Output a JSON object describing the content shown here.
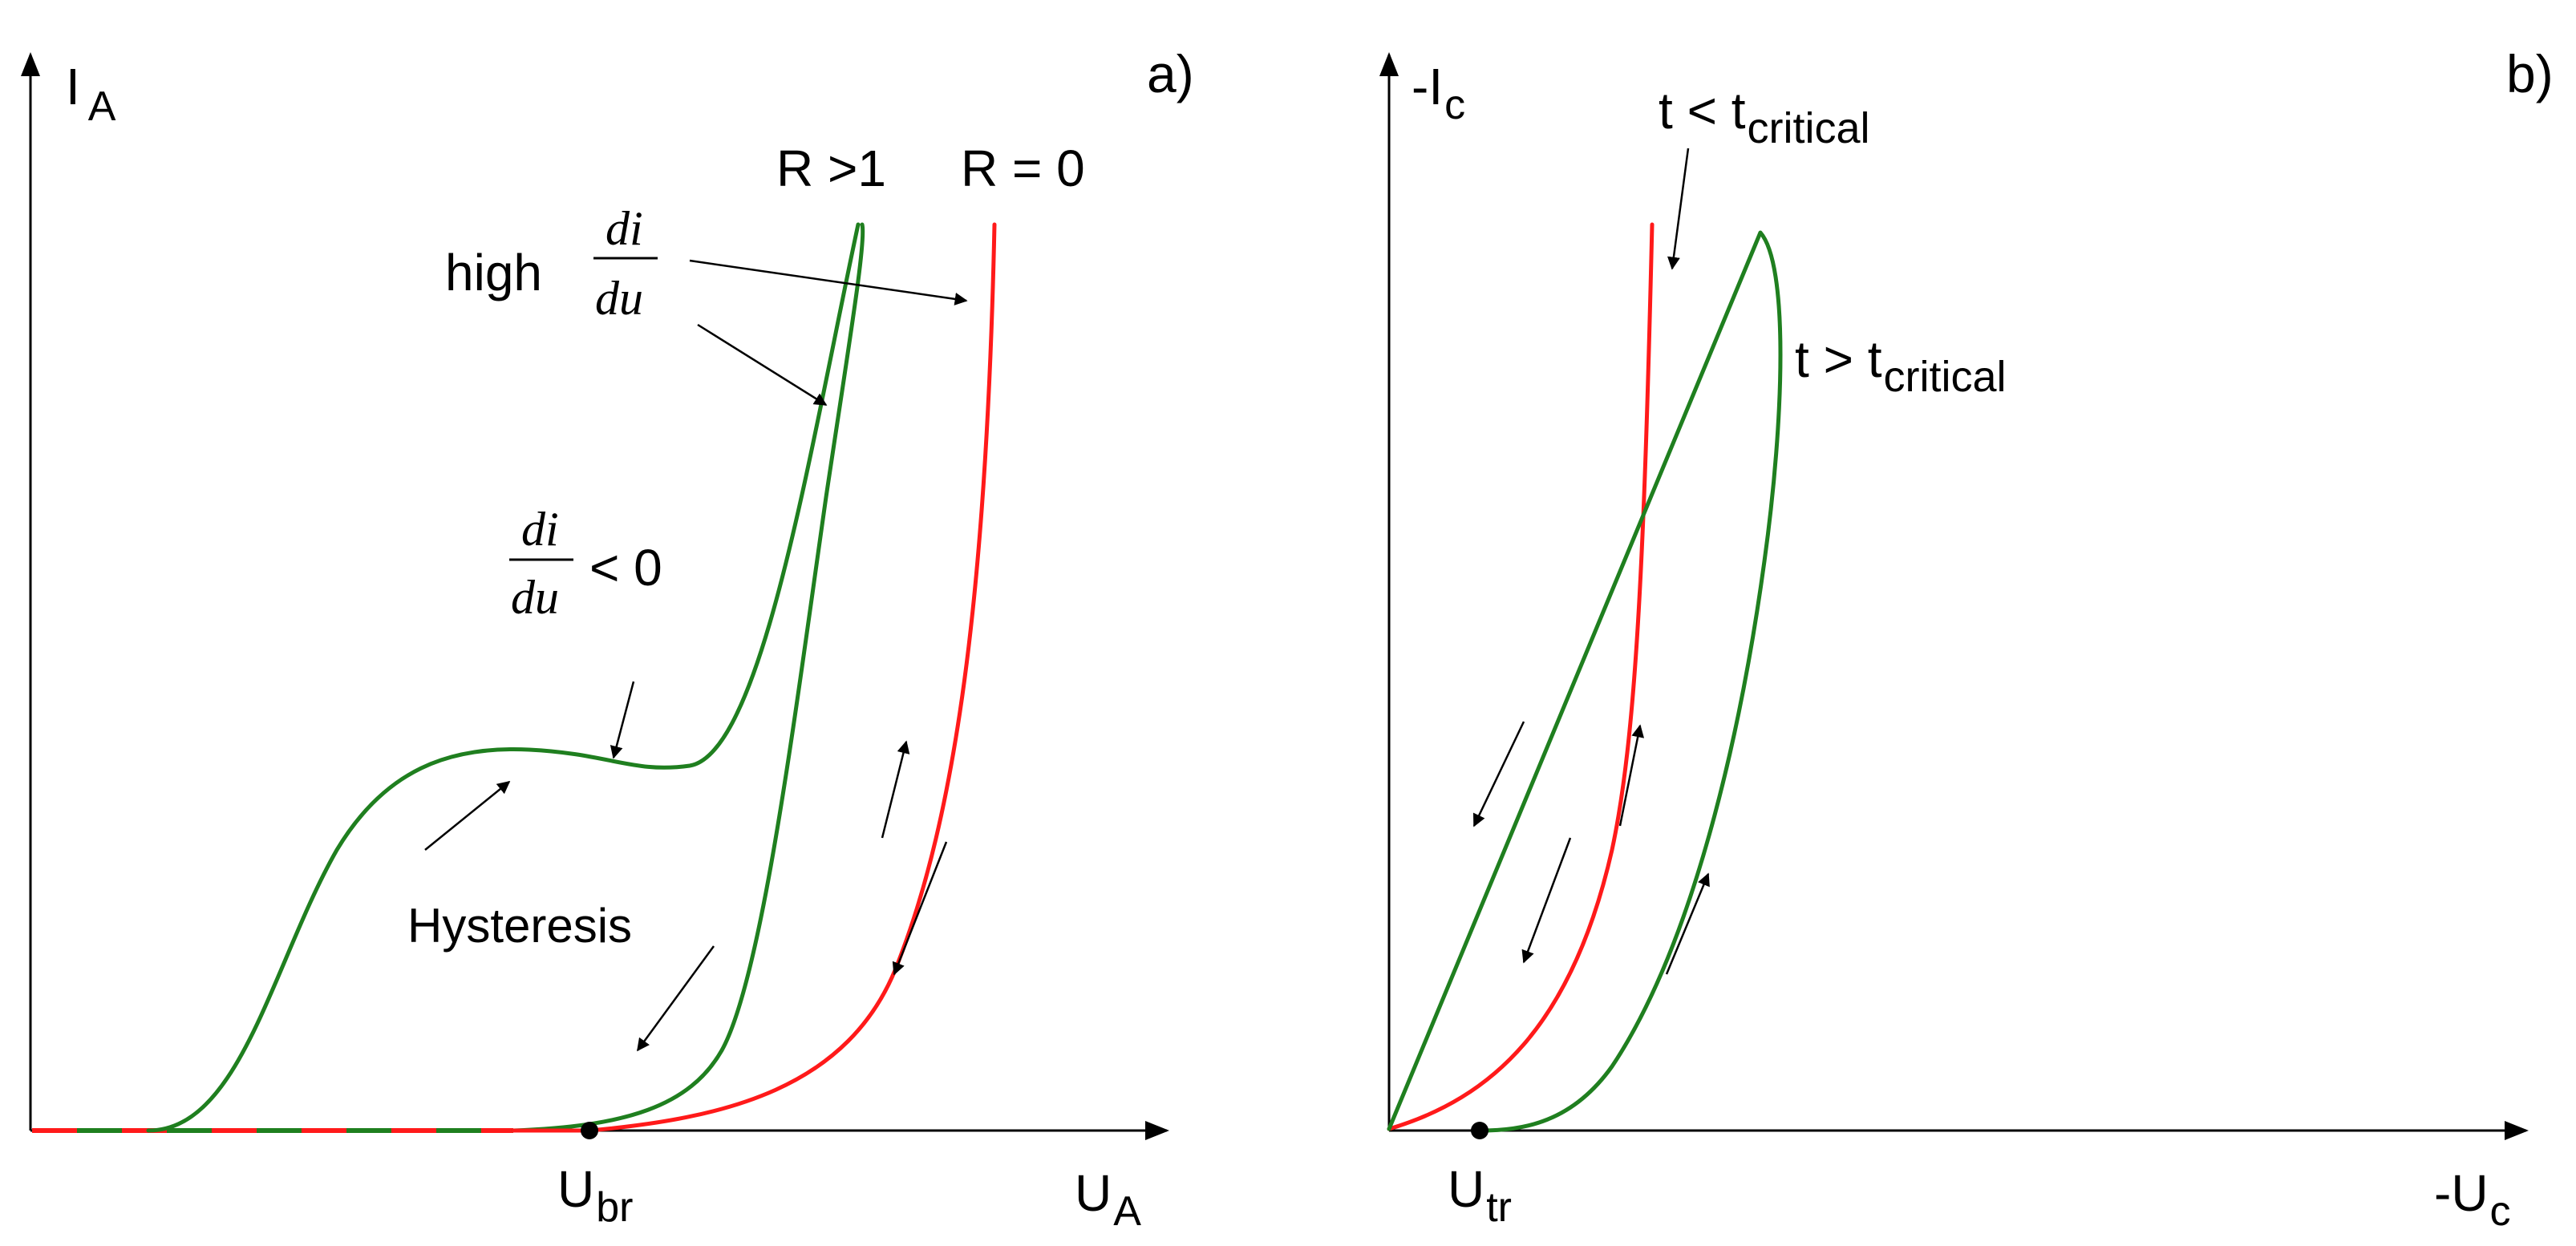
{
  "panel_a": {
    "tag": "a)",
    "y_axis_main": "I",
    "y_axis_sub": "A",
    "x_axis_main": "U",
    "x_axis_sub": "A",
    "breakdown_main": "U",
    "breakdown_sub": "br",
    "curve_label_green": "R >1",
    "curve_label_red": "R = 0",
    "high_word": "high",
    "frac_num": "di",
    "frac_den": "du",
    "negative_suffix": "< 0",
    "hysteresis": "Hysteresis"
  },
  "panel_b": {
    "tag": "b)",
    "y_axis_main": "-I",
    "y_axis_sub": "c",
    "x_axis_main": "-U",
    "x_axis_sub": "c",
    "trigger_main": "U",
    "trigger_sub": "tr",
    "below_critical_main": "t < t",
    "below_critical_sub": "critical",
    "above_critical_main": "t > t",
    "above_critical_sub": "critical"
  },
  "colors": {
    "green_curve": "#1f7f1f",
    "red_curve": "#ff1a1a",
    "axes": "#000000"
  }
}
